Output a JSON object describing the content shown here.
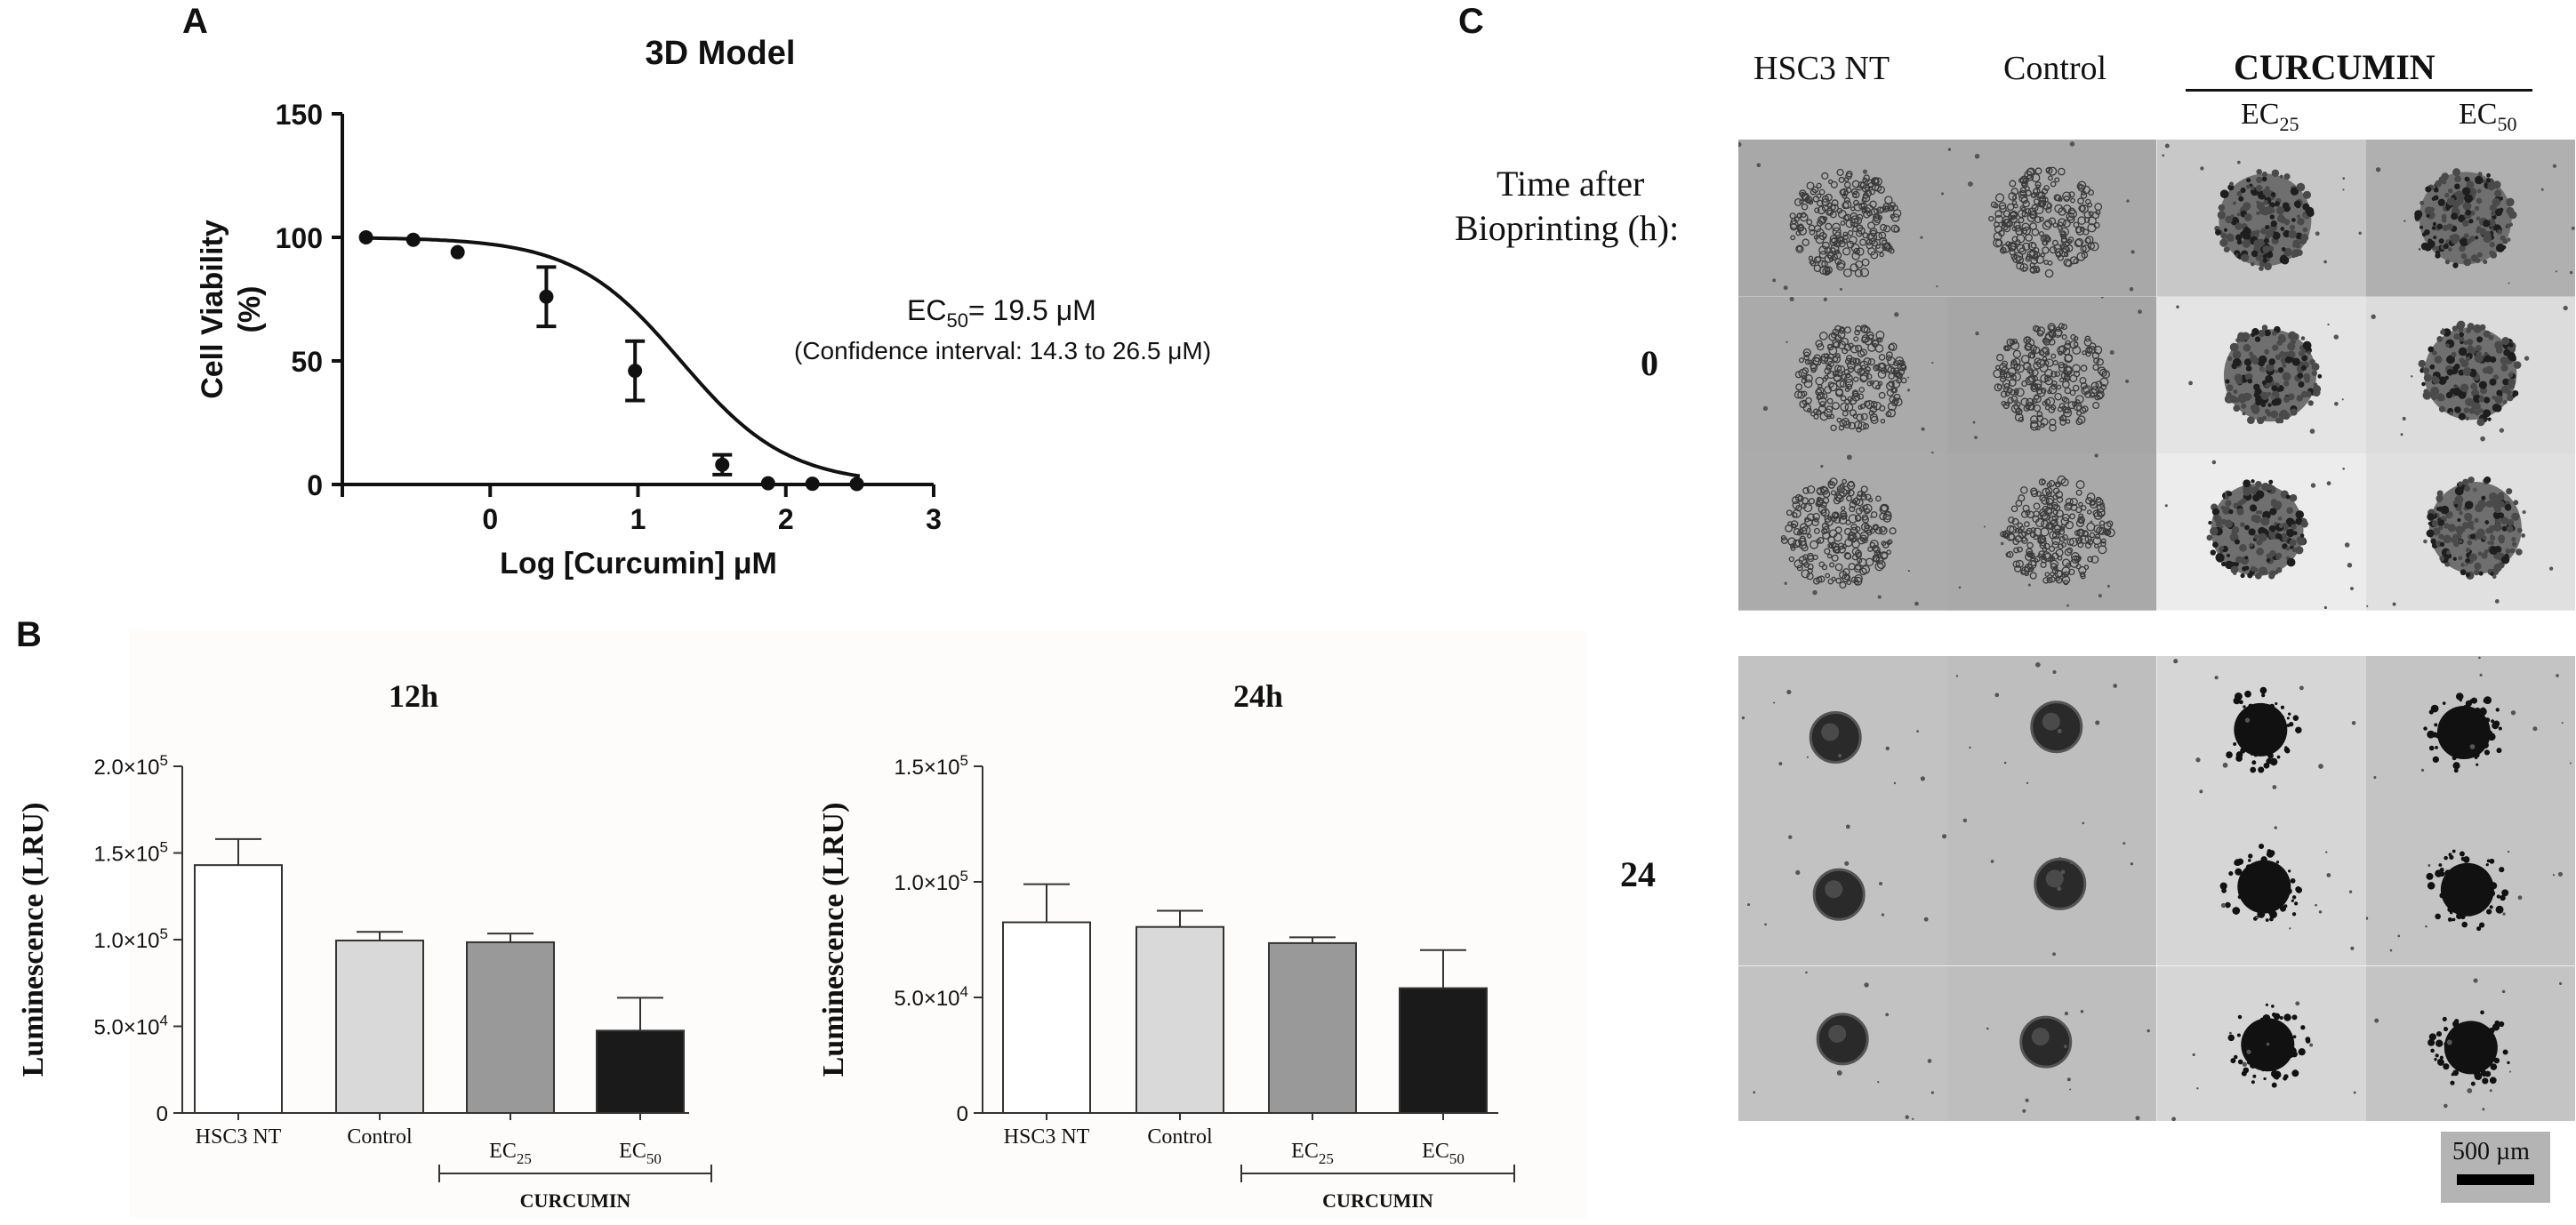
{
  "panels": {
    "a": "A",
    "b": "B",
    "c": "C"
  },
  "panel_a": {
    "title": "3D Model",
    "ylabel_line1": "Cell Viability",
    "ylabel_line2": "(%)",
    "xlabel": "Log [Curcumin] μM",
    "ec50_label": "EC",
    "ec50_sub": "50",
    "ec50_value": "= 19.5 μM",
    "ci_text": "(Confidence interval: 14.3 to 26.5 μM)"
  },
  "panel_b": {
    "ylabel": "Luminescence (LRU)",
    "group_label": "CURCUMIN"
  },
  "panel_c": {
    "col_headers": [
      "HSC3 NT",
      "Control"
    ],
    "curcumin_label": "CURCUMIN",
    "ec25_label": "EC",
    "ec25_sub": "25",
    "ec50_label": "EC",
    "ec50_sub": "50",
    "time_label_line1": "Time after",
    "time_label_line2": "Bioprinting (h):",
    "row_labels": [
      "0",
      "24"
    ],
    "scale_bar_label": "500 µm"
  },
  "chart_data": [
    {
      "type": "scatter",
      "title": "3D Model",
      "xlabel": "Log [Curcumin] μM",
      "ylabel": "Cell Viability (%)",
      "xlim": [
        -1,
        3
      ],
      "ylim": [
        0,
        150
      ],
      "xticks": [
        0,
        1,
        2,
        3
      ],
      "yticks": [
        0,
        50,
        100,
        150
      ],
      "points": [
        {
          "x": -0.84,
          "y": 100,
          "err": 0
        },
        {
          "x": -0.52,
          "y": 99,
          "err": 0
        },
        {
          "x": -0.22,
          "y": 94,
          "err": 0
        },
        {
          "x": 0.38,
          "y": 76,
          "err": 12
        },
        {
          "x": 0.98,
          "y": 46,
          "err": 12
        },
        {
          "x": 1.57,
          "y": 8,
          "err": 4
        },
        {
          "x": 1.88,
          "y": 0.5,
          "err": 0
        },
        {
          "x": 2.18,
          "y": 0.3,
          "err": 0
        },
        {
          "x": 2.48,
          "y": 0.2,
          "err": 0
        }
      ],
      "fit": {
        "model": "sigmoidal dose-response",
        "top": 100,
        "bottom": 0,
        "logEC50": 1.29,
        "hillslope": -1.2
      },
      "annotation": "EC50= 19.5 μM (Confidence interval: 14.3 to 26.5 μM)"
    },
    {
      "type": "bar",
      "title": "12h",
      "categories": [
        "HSC3 NT",
        "Control",
        "EC25",
        "EC50"
      ],
      "values": [
        143000,
        99500,
        98500,
        47500
      ],
      "errors": [
        15000,
        5000,
        5000,
        19000
      ],
      "colors": [
        "#ffffff",
        "#d9d9d9",
        "#999999",
        "#1a1a1a"
      ],
      "ylabel": "Luminescence (LRU)",
      "ylim": [
        0,
        200000
      ],
      "yticks": [
        0,
        50000,
        100000,
        150000,
        200000
      ],
      "ytick_labels": [
        "0",
        "5.0×10^4",
        "1.0×10^5",
        "1.5×10^5",
        "2.0×10^5"
      ],
      "group_label": "CURCUMIN"
    },
    {
      "type": "bar",
      "title": "24h",
      "categories": [
        "HSC3 NT",
        "Control",
        "EC25",
        "EC50"
      ],
      "values": [
        82500,
        80500,
        73500,
        54000
      ],
      "errors": [
        16500,
        7000,
        2500,
        16500
      ],
      "colors": [
        "#ffffff",
        "#d9d9d9",
        "#999999",
        "#1a1a1a"
      ],
      "ylabel": "Luminescence (LRU)",
      "ylim": [
        0,
        150000
      ],
      "yticks": [
        0,
        50000,
        100000,
        150000
      ],
      "ytick_labels": [
        "0",
        "5.0×10^4",
        "1.0×10^5",
        "1.5×10^5"
      ],
      "group_label": "CURCUMIN"
    }
  ]
}
